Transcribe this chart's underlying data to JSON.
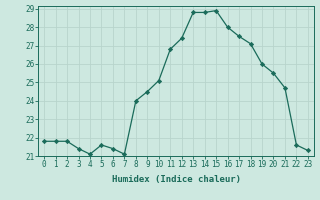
{
  "x": [
    0,
    1,
    2,
    3,
    4,
    5,
    6,
    7,
    8,
    9,
    10,
    11,
    12,
    13,
    14,
    15,
    16,
    17,
    18,
    19,
    20,
    21,
    22,
    23
  ],
  "y": [
    21.8,
    21.8,
    21.8,
    21.4,
    21.1,
    21.6,
    21.4,
    21.1,
    24.0,
    24.5,
    25.1,
    26.8,
    27.4,
    28.8,
    28.8,
    28.9,
    28.0,
    27.5,
    27.1,
    26.0,
    25.5,
    24.7,
    21.6,
    21.3
  ],
  "line_color": "#1a6b5a",
  "marker": "D",
  "marker_size": 2.2,
  "bg_color": "#cde8e0",
  "grid_color": "#b8d4cc",
  "xlabel": "Humidex (Indice chaleur)",
  "ylim": [
    21,
    29
  ],
  "xlim": [
    -0.5,
    23.5
  ],
  "yticks": [
    21,
    22,
    23,
    24,
    25,
    26,
    27,
    28,
    29
  ],
  "xticks": [
    0,
    1,
    2,
    3,
    4,
    5,
    6,
    7,
    8,
    9,
    10,
    11,
    12,
    13,
    14,
    15,
    16,
    17,
    18,
    19,
    20,
    21,
    22,
    23
  ],
  "tick_color": "#1a6b5a",
  "label_fontsize": 6.5,
  "tick_fontsize": 5.5,
  "linewidth": 0.9
}
